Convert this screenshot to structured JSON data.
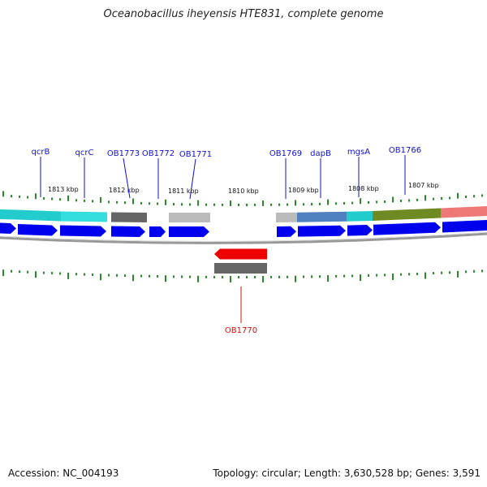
{
  "title": "Oceanobacillus iheyensis HTE831, complete genome",
  "footer": {
    "accession": "Accession: NC_004193",
    "summary": "Topology: circular; Length: 3,630,528 bp; Genes: 3,591"
  },
  "colors": {
    "forward_cds": "#0000ee",
    "reverse_cds": "#ee0000",
    "tick": "#2a8a2a",
    "backbone": "#888888",
    "label_forward": "#1010cc",
    "label_reverse": "#cc1010"
  },
  "kbp_labels": [
    "1813 kbp",
    "1812 kbp",
    "1811 kbp",
    "1810 kbp",
    "1809 kbp",
    "1808 kbp",
    "1807 kbp"
  ],
  "gene_labels_forward": [
    "qcrB",
    "qcrC",
    "OB1773",
    "OB1772",
    "OB1771",
    "OB1769",
    "dapB",
    "mgsA",
    "OB1766"
  ],
  "gene_labels_reverse": [
    "OB1770"
  ]
}
